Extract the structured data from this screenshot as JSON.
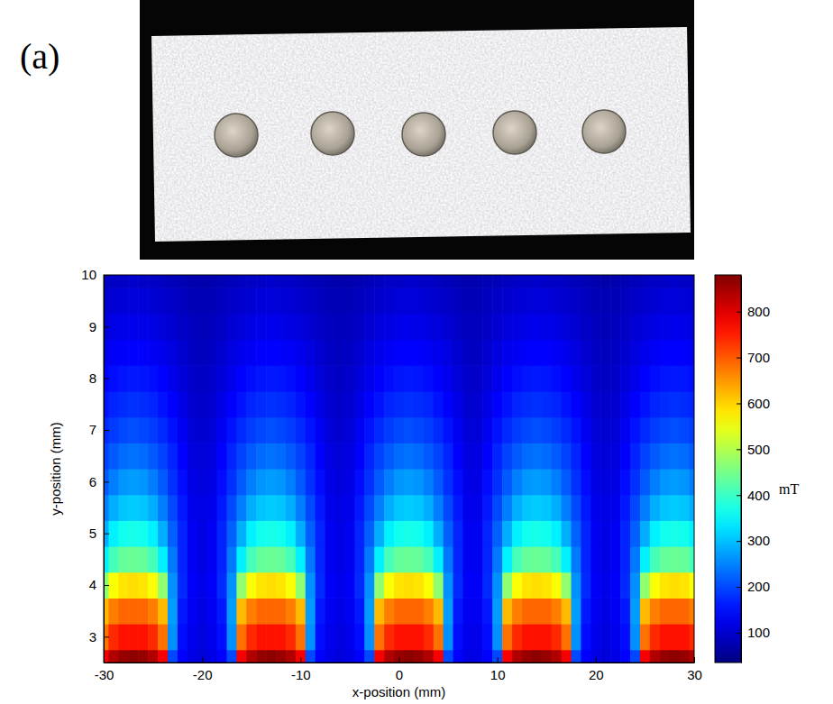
{
  "panel_label": "(a)",
  "chart_data": {
    "type": "heatmap",
    "x_label": "x-position (mm)",
    "y_label": "y-position (mm)",
    "xlim": [
      -30,
      30
    ],
    "ylim": [
      2.5,
      10
    ],
    "xticks": [
      -30,
      -20,
      -10,
      0,
      10,
      20,
      30
    ],
    "yticks": [
      3,
      4,
      5,
      6,
      7,
      8,
      9,
      10
    ],
    "grid": false,
    "x": [
      -30,
      -29,
      -28,
      -27,
      -26,
      -25,
      -24,
      -23,
      -22,
      -21,
      -20,
      -19,
      -18,
      -17,
      -16,
      -15,
      -14,
      -13,
      -12,
      -11,
      -10,
      -9,
      -8,
      -7,
      -6,
      -5,
      -4,
      -3,
      -2,
      -1,
      0,
      1,
      2,
      3,
      4,
      5,
      6,
      7,
      8,
      9,
      10,
      11,
      12,
      13,
      14,
      15,
      16,
      17,
      18,
      19,
      20,
      21,
      22,
      23,
      24,
      25,
      26,
      27,
      28,
      29,
      30
    ],
    "y": [
      2.5,
      3,
      3.5,
      4,
      4.5,
      5,
      5.5,
      6,
      6.5,
      7,
      7.5,
      8,
      8.5,
      9,
      9.5,
      10
    ],
    "cells": [
      [
        780,
        840,
        860,
        870,
        860,
        840,
        780,
        200,
        140,
        120,
        110,
        120,
        140,
        200,
        780,
        840,
        860,
        870,
        860,
        840,
        780,
        200,
        140,
        120,
        110,
        120,
        140,
        200,
        780,
        840,
        860,
        870,
        860,
        840,
        780,
        200,
        140,
        120,
        120,
        140,
        200,
        780,
        840,
        860,
        870,
        860,
        840,
        780,
        200,
        140,
        120,
        110,
        120,
        140,
        200,
        780,
        840,
        860,
        870,
        860,
        840
      ],
      [
        680,
        740,
        760,
        760,
        760,
        740,
        680,
        260,
        150,
        125,
        115,
        125,
        150,
        260,
        680,
        740,
        760,
        760,
        760,
        740,
        680,
        260,
        150,
        125,
        115,
        125,
        150,
        260,
        680,
        740,
        760,
        760,
        760,
        740,
        680,
        260,
        150,
        125,
        125,
        150,
        260,
        680,
        740,
        760,
        760,
        760,
        740,
        680,
        260,
        150,
        125,
        115,
        125,
        150,
        260,
        680,
        740,
        760,
        760,
        760,
        740
      ],
      [
        620,
        670,
        690,
        690,
        690,
        670,
        620,
        270,
        160,
        130,
        120,
        130,
        160,
        270,
        620,
        670,
        690,
        690,
        690,
        670,
        620,
        270,
        160,
        130,
        120,
        130,
        160,
        270,
        620,
        670,
        690,
        690,
        690,
        670,
        620,
        270,
        160,
        130,
        130,
        160,
        270,
        620,
        670,
        690,
        690,
        690,
        670,
        620,
        270,
        160,
        130,
        120,
        130,
        160,
        270,
        620,
        670,
        690,
        690,
        690,
        670
      ],
      [
        470,
        560,
        585,
        590,
        585,
        560,
        470,
        260,
        175,
        135,
        125,
        135,
        175,
        260,
        470,
        560,
        585,
        590,
        585,
        560,
        470,
        260,
        175,
        135,
        125,
        135,
        175,
        260,
        470,
        560,
        585,
        590,
        585,
        560,
        470,
        260,
        175,
        135,
        135,
        175,
        260,
        470,
        560,
        585,
        590,
        585,
        560,
        470,
        260,
        175,
        135,
        125,
        135,
        175,
        260,
        470,
        560,
        585,
        590,
        585,
        560
      ],
      [
        340,
        410,
        435,
        440,
        435,
        410,
        340,
        240,
        170,
        130,
        120,
        130,
        170,
        240,
        340,
        410,
        435,
        440,
        435,
        410,
        340,
        240,
        170,
        130,
        120,
        130,
        170,
        240,
        340,
        410,
        435,
        440,
        435,
        410,
        340,
        240,
        170,
        130,
        130,
        170,
        240,
        340,
        410,
        435,
        440,
        435,
        410,
        340,
        240,
        170,
        130,
        120,
        130,
        170,
        240,
        340,
        410,
        435,
        440,
        435,
        410
      ],
      [
        285,
        340,
        365,
        370,
        365,
        340,
        285,
        220,
        170,
        130,
        120,
        130,
        170,
        220,
        285,
        340,
        365,
        370,
        365,
        340,
        285,
        220,
        170,
        130,
        120,
        130,
        170,
        220,
        285,
        340,
        365,
        370,
        365,
        340,
        285,
        220,
        170,
        130,
        130,
        170,
        220,
        285,
        340,
        365,
        370,
        365,
        340,
        285,
        220,
        170,
        130,
        120,
        130,
        170,
        220,
        285,
        340,
        365,
        370,
        365,
        340
      ],
      [
        245,
        285,
        305,
        310,
        305,
        285,
        245,
        200,
        160,
        125,
        118,
        125,
        160,
        200,
        245,
        285,
        305,
        310,
        305,
        285,
        245,
        200,
        160,
        125,
        118,
        125,
        160,
        200,
        245,
        285,
        305,
        310,
        305,
        285,
        245,
        200,
        160,
        125,
        125,
        160,
        200,
        245,
        285,
        305,
        310,
        305,
        285,
        245,
        200,
        160,
        125,
        118,
        125,
        160,
        200,
        245,
        285,
        305,
        310,
        305,
        285
      ],
      [
        215,
        245,
        265,
        270,
        265,
        245,
        215,
        180,
        150,
        120,
        112,
        120,
        150,
        180,
        215,
        245,
        265,
        270,
        265,
        245,
        215,
        180,
        150,
        120,
        112,
        120,
        150,
        180,
        215,
        245,
        265,
        270,
        265,
        245,
        215,
        180,
        150,
        120,
        120,
        150,
        180,
        215,
        245,
        265,
        270,
        265,
        245,
        215,
        180,
        150,
        120,
        112,
        120,
        150,
        180,
        215,
        245,
        265,
        270,
        265,
        245
      ],
      [
        195,
        215,
        230,
        235,
        230,
        215,
        195,
        170,
        140,
        115,
        108,
        115,
        140,
        170,
        195,
        215,
        230,
        235,
        230,
        215,
        195,
        170,
        140,
        115,
        108,
        115,
        140,
        170,
        195,
        215,
        230,
        235,
        230,
        215,
        195,
        170,
        140,
        115,
        115,
        140,
        170,
        195,
        215,
        230,
        235,
        230,
        215,
        195,
        170,
        140,
        115,
        108,
        115,
        140,
        170,
        195,
        215,
        230,
        235,
        230,
        215
      ],
      [
        175,
        190,
        200,
        205,
        200,
        190,
        175,
        155,
        130,
        108,
        102,
        108,
        130,
        155,
        175,
        190,
        200,
        205,
        200,
        190,
        175,
        155,
        130,
        108,
        102,
        108,
        130,
        155,
        175,
        190,
        200,
        205,
        200,
        190,
        175,
        155,
        130,
        108,
        108,
        130,
        155,
        175,
        190,
        200,
        205,
        200,
        190,
        175,
        155,
        130,
        108,
        102,
        108,
        130,
        155,
        175,
        190,
        200,
        205,
        200,
        190
      ],
      [
        155,
        170,
        176,
        180,
        176,
        170,
        155,
        140,
        120,
        102,
        97,
        102,
        120,
        140,
        155,
        170,
        176,
        180,
        176,
        170,
        155,
        140,
        120,
        102,
        97,
        102,
        120,
        140,
        155,
        170,
        176,
        180,
        176,
        170,
        155,
        140,
        120,
        102,
        102,
        120,
        140,
        155,
        170,
        176,
        180,
        176,
        170,
        155,
        140,
        120,
        102,
        97,
        102,
        120,
        140,
        155,
        170,
        176,
        180,
        176,
        170
      ],
      [
        140,
        150,
        157,
        160,
        157,
        150,
        140,
        125,
        110,
        97,
        92,
        97,
        110,
        125,
        140,
        150,
        157,
        160,
        157,
        150,
        140,
        125,
        110,
        97,
        92,
        97,
        110,
        125,
        140,
        150,
        157,
        160,
        157,
        150,
        140,
        125,
        110,
        97,
        97,
        110,
        125,
        140,
        150,
        157,
        160,
        157,
        150,
        140,
        125,
        110,
        97,
        92,
        97,
        110,
        125,
        140,
        150,
        157,
        160,
        157,
        150
      ],
      [
        125,
        133,
        138,
        140,
        138,
        133,
        125,
        115,
        102,
        92,
        88,
        92,
        102,
        115,
        125,
        133,
        138,
        140,
        138,
        133,
        125,
        115,
        102,
        92,
        88,
        92,
        102,
        115,
        125,
        133,
        138,
        140,
        138,
        133,
        125,
        115,
        102,
        92,
        92,
        102,
        115,
        125,
        133,
        138,
        140,
        138,
        133,
        125,
        115,
        102,
        92,
        88,
        92,
        102,
        115,
        125,
        133,
        138,
        140,
        138,
        133
      ],
      [
        112,
        118,
        122,
        125,
        122,
        118,
        112,
        103,
        94,
        87,
        84,
        87,
        94,
        103,
        112,
        118,
        122,
        125,
        122,
        118,
        112,
        103,
        94,
        87,
        84,
        87,
        94,
        103,
        112,
        118,
        122,
        125,
        122,
        118,
        112,
        103,
        94,
        87,
        87,
        94,
        103,
        112,
        118,
        122,
        125,
        122,
        118,
        112,
        103,
        94,
        87,
        84,
        87,
        94,
        103,
        112,
        118,
        122,
        125,
        122,
        118
      ],
      [
        100,
        105,
        108,
        110,
        108,
        105,
        100,
        94,
        87,
        81,
        79,
        81,
        87,
        94,
        100,
        105,
        108,
        110,
        108,
        105,
        100,
        94,
        87,
        81,
        79,
        81,
        87,
        94,
        100,
        105,
        108,
        110,
        108,
        105,
        100,
        94,
        87,
        81,
        81,
        87,
        94,
        100,
        105,
        108,
        110,
        108,
        105,
        100,
        94,
        87,
        81,
        79,
        81,
        87,
        94,
        100,
        105,
        108,
        110,
        108,
        105
      ],
      [
        89,
        93,
        96,
        98,
        96,
        93,
        89,
        84,
        79,
        75,
        73,
        75,
        79,
        84,
        89,
        93,
        96,
        98,
        96,
        93,
        89,
        84,
        79,
        75,
        73,
        75,
        79,
        84,
        89,
        93,
        96,
        98,
        96,
        93,
        89,
        84,
        79,
        75,
        75,
        79,
        84,
        89,
        93,
        96,
        98,
        96,
        93,
        89,
        84,
        79,
        75,
        73,
        75,
        79,
        84,
        89,
        93,
        96,
        98,
        96,
        93
      ]
    ],
    "colorbar": {
      "range": [
        35,
        880
      ],
      "ticks": [
        100,
        200,
        300,
        400,
        500,
        600,
        700,
        800
      ],
      "label": "mT"
    }
  }
}
